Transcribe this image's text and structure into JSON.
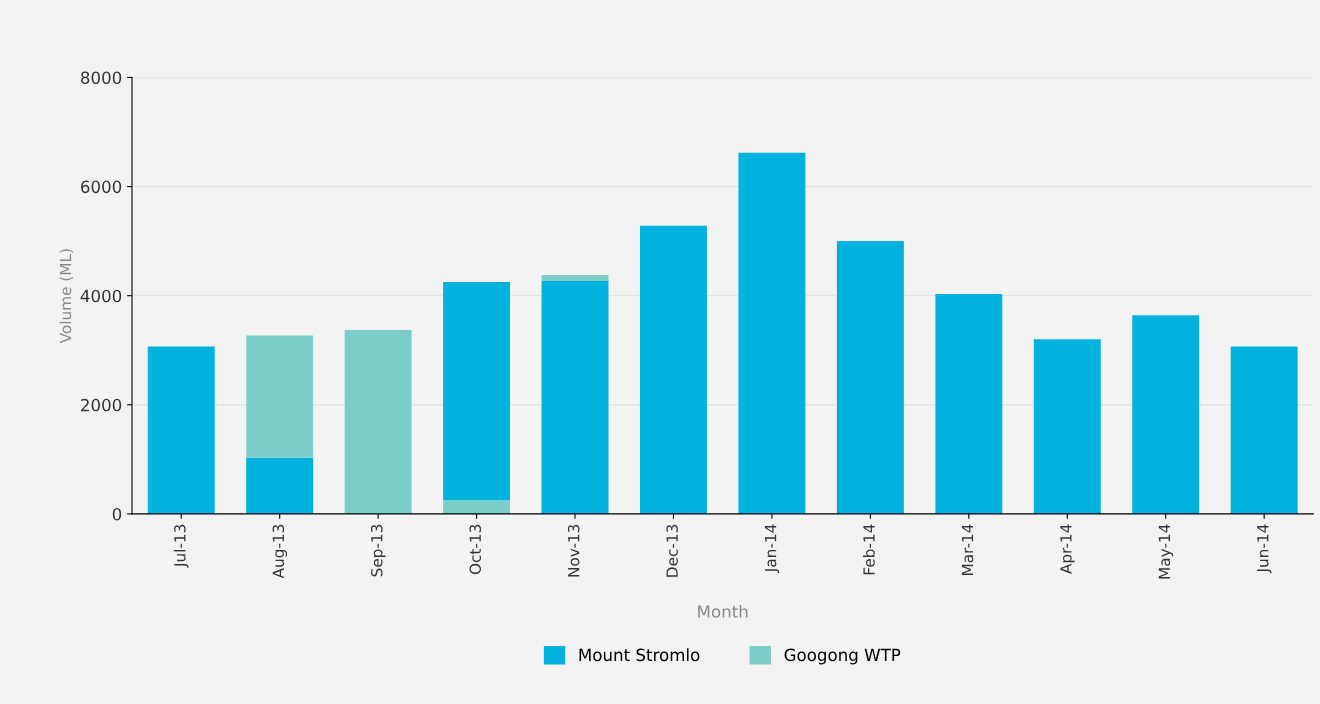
{
  "chart_data": {
    "type": "bar",
    "stacked": true,
    "xlabel": "Month",
    "ylabel": "Volume (ML)",
    "categories": [
      "Jul-13",
      "Aug-13",
      "Sep-13",
      "Oct-13",
      "Nov-13",
      "Dec-13",
      "Jan-14",
      "Feb-14",
      "Mar-14",
      "Apr-14",
      "May-14",
      "Jun-14"
    ],
    "series": [
      {
        "color": "#7ccfc8",
        "values": [
          null,
          null,
          null,
          250,
          null,
          null,
          null,
          null,
          null,
          null,
          null,
          null
        ]
      },
      {
        "name": "Mount Stromlo",
        "color": "#00b2dd",
        "values": [
          3070,
          1030,
          null,
          4000,
          4270,
          5280,
          6620,
          5000,
          4030,
          3200,
          3640,
          3070
        ]
      },
      {
        "name": "Googong WTP",
        "color": "#7ccfc8",
        "values": [
          null,
          2240,
          3370,
          null,
          110,
          null,
          null,
          null,
          null,
          null,
          null,
          null
        ]
      }
    ],
    "ylim": [
      0,
      8000
    ],
    "yticks": [
      0,
      2000,
      4000,
      6000,
      8000
    ],
    "grid": "y",
    "legend": "bottom"
  }
}
